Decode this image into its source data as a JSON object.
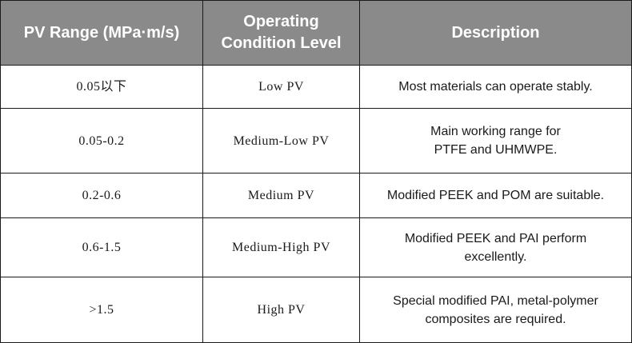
{
  "table": {
    "headers": {
      "range": "PV Range (MPa·m/s)",
      "level_line1": "Operating",
      "level_line2": "Condition Level",
      "description": "Description"
    },
    "rows": [
      {
        "range": "0.05以下",
        "level": "Low PV",
        "description_lines": [
          "Most materials can operate stably."
        ]
      },
      {
        "range": "0.05-0.2",
        "level": "Medium-Low PV",
        "description_lines": [
          "Main working range for",
          "PTFE and UHMWPE."
        ]
      },
      {
        "range": "0.2-0.6",
        "level": "Medium PV",
        "description_lines": [
          "Modified PEEK and POM are suitable."
        ]
      },
      {
        "range": "0.6-1.5",
        "level": "Medium-High PV",
        "description_lines": [
          "Modified PEEK and PAI perform",
          "excellently."
        ]
      },
      {
        "range": ">1.5",
        "level": "High PV",
        "description_lines": [
          "Special modified PAI, metal-polymer",
          "composites are required."
        ]
      }
    ]
  },
  "colors": {
    "header_background": "#8a8a8a",
    "header_text": "#ffffff",
    "border": "#1a1a1a",
    "body_text": "#1a1a1a"
  }
}
